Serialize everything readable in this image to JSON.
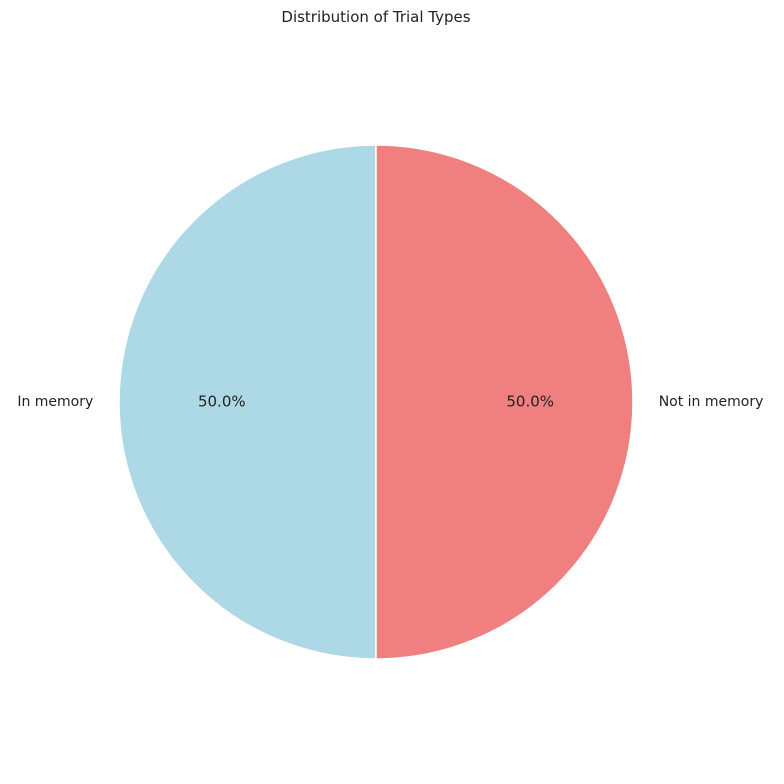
{
  "chart_data": {
    "type": "pie",
    "title": "Distribution of Trial Types",
    "categories": [
      "In memory",
      "Not in memory"
    ],
    "values": [
      50.0,
      50.0
    ],
    "percent_labels": [
      "50.0%",
      "50.0%"
    ],
    "colors": [
      "#add8e6",
      "#f08080"
    ],
    "edge_color": "#ffffff",
    "start_angle_deg": 90,
    "direction": "counterclockwise",
    "legend": "none"
  }
}
